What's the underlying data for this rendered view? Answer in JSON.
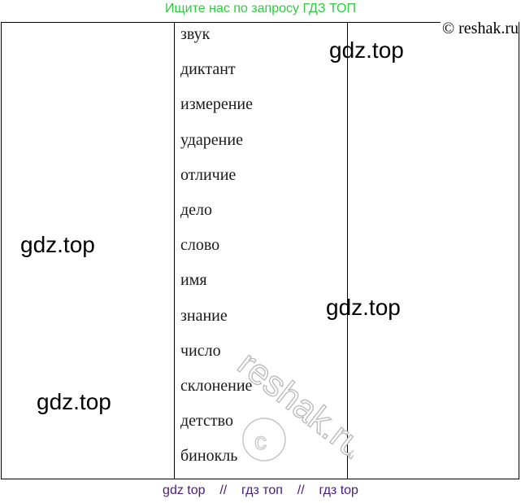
{
  "header": {
    "banner": "Ищите нас по запросу ГДЗ ТОП",
    "copyright": "© reshak.ru"
  },
  "table": {
    "words": [
      "звук",
      "диктант",
      "измерение",
      "ударение",
      "отличие",
      "дело",
      "слово",
      "имя",
      "знание",
      "число",
      "склонение",
      "детство",
      "бинокль"
    ]
  },
  "watermarks": {
    "gdz_1": "gdz.top",
    "gdz_2": "gdz.top",
    "gdz_3": "gdz.top",
    "gdz_4": "gdz.top",
    "reshak": "reshak.ru"
  },
  "footer": {
    "link_1": "gdz top",
    "sep_1": "//",
    "link_2": "гдз топ",
    "sep_2": "//",
    "link_3": "гдз top"
  },
  "colors": {
    "banner": "#2ecc40",
    "footer": "#4b1d7a"
  }
}
